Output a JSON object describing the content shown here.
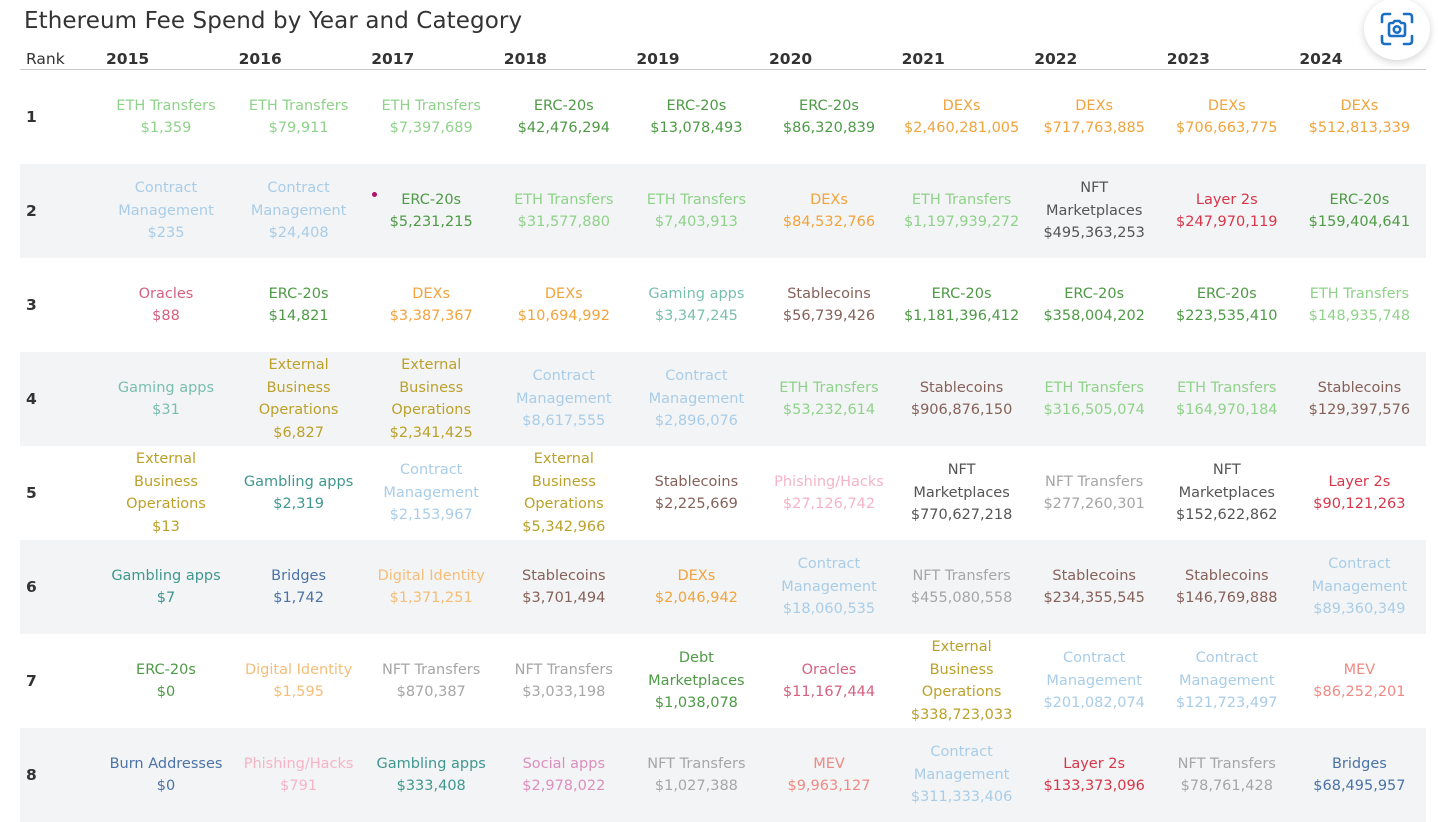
{
  "title": "Ethereum Fee Spend by Year and Category",
  "chart_data": {
    "type": "table",
    "title": "Ethereum Fee Spend by Year and Category",
    "rank_header": "Rank",
    "years": [
      "2015",
      "2016",
      "2017",
      "2018",
      "2019",
      "2020",
      "2021",
      "2022",
      "2023",
      "2024"
    ],
    "category_colors": {
      "ETH Transfers": "#8fd28a",
      "ERC-20s": "#4e9a46",
      "DEXs": "#f2a33c",
      "Contract Management": "#a9cde8",
      "Oracles": "#d5607f",
      "Gaming apps": "#79bfae",
      "Gambling apps": "#3f978f",
      "External Business Operations": "#bba12a",
      "Stablecoins": "#86615a",
      "NFT Marketplaces": "#555555",
      "Layer 2s": "#d9364a",
      "Phishing/Hacks": "#f6b3c6",
      "NFT Transfers": "#a6a6a6",
      "Bridges": "#4b73a7",
      "Digital Identity": "#f5bd78",
      "Debt Marketplaces": "#4e9a46",
      "Burn Addresses": "#4b73a7",
      "Social apps": "#dc8fbd",
      "MEV": "#f08a84"
    },
    "rows": [
      {
        "rank": "1",
        "cells": [
          {
            "category": "ETH Transfers",
            "value": "$1,359"
          },
          {
            "category": "ETH Transfers",
            "value": "$79,911"
          },
          {
            "category": "ETH Transfers",
            "value": "$7,397,689"
          },
          {
            "category": "ERC-20s",
            "value": "$42,476,294"
          },
          {
            "category": "ERC-20s",
            "value": "$13,078,493"
          },
          {
            "category": "ERC-20s",
            "value": "$86,320,839"
          },
          {
            "category": "DEXs",
            "value": "$2,460,281,005"
          },
          {
            "category": "DEXs",
            "value": "$717,763,885"
          },
          {
            "category": "DEXs",
            "value": "$706,663,775"
          },
          {
            "category": "DEXs",
            "value": "$512,813,339"
          }
        ]
      },
      {
        "rank": "2",
        "cells": [
          {
            "category": "Contract Management",
            "value": "$235"
          },
          {
            "category": "Contract Management",
            "value": "$24,408"
          },
          {
            "category": "ERC-20s",
            "value": "$5,231,215"
          },
          {
            "category": "ETH Transfers",
            "value": "$31,577,880"
          },
          {
            "category": "ETH Transfers",
            "value": "$7,403,913"
          },
          {
            "category": "DEXs",
            "value": "$84,532,766"
          },
          {
            "category": "ETH Transfers",
            "value": "$1,197,939,272"
          },
          {
            "category": "NFT Marketplaces",
            "value": "$495,363,253"
          },
          {
            "category": "Layer 2s",
            "value": "$247,970,119"
          },
          {
            "category": "ERC-20s",
            "value": "$159,404,641"
          }
        ]
      },
      {
        "rank": "3",
        "cells": [
          {
            "category": "Oracles",
            "value": "$88"
          },
          {
            "category": "ERC-20s",
            "value": "$14,821"
          },
          {
            "category": "DEXs",
            "value": "$3,387,367"
          },
          {
            "category": "DEXs",
            "value": "$10,694,992"
          },
          {
            "category": "Gaming apps",
            "value": "$3,347,245"
          },
          {
            "category": "Stablecoins",
            "value": "$56,739,426"
          },
          {
            "category": "ERC-20s",
            "value": "$1,181,396,412"
          },
          {
            "category": "ERC-20s",
            "value": "$358,004,202"
          },
          {
            "category": "ERC-20s",
            "value": "$223,535,410"
          },
          {
            "category": "ETH Transfers",
            "value": "$148,935,748"
          }
        ]
      },
      {
        "rank": "4",
        "cells": [
          {
            "category": "Gaming apps",
            "value": "$31"
          },
          {
            "category": "External Business Operations",
            "value": "$6,827"
          },
          {
            "category": "External Business Operations",
            "value": "$2,341,425"
          },
          {
            "category": "Contract Management",
            "value": "$8,617,555"
          },
          {
            "category": "Contract Management",
            "value": "$2,896,076"
          },
          {
            "category": "ETH Transfers",
            "value": "$53,232,614"
          },
          {
            "category": "Stablecoins",
            "value": "$906,876,150"
          },
          {
            "category": "ETH Transfers",
            "value": "$316,505,074"
          },
          {
            "category": "ETH Transfers",
            "value": "$164,970,184"
          },
          {
            "category": "Stablecoins",
            "value": "$129,397,576"
          }
        ]
      },
      {
        "rank": "5",
        "cells": [
          {
            "category": "External Business Operations",
            "value": "$13"
          },
          {
            "category": "Gambling apps",
            "value": "$2,319"
          },
          {
            "category": "Contract Management",
            "value": "$2,153,967"
          },
          {
            "category": "External Business Operations",
            "value": "$5,342,966"
          },
          {
            "category": "Stablecoins",
            "value": "$2,225,669"
          },
          {
            "category": "Phishing/Hacks",
            "value": "$27,126,742"
          },
          {
            "category": "NFT Marketplaces",
            "value": "$770,627,218"
          },
          {
            "category": "NFT Transfers",
            "value": "$277,260,301"
          },
          {
            "category": "NFT Marketplaces",
            "value": "$152,622,862"
          },
          {
            "category": "Layer 2s",
            "value": "$90,121,263"
          }
        ]
      },
      {
        "rank": "6",
        "cells": [
          {
            "category": "Gambling apps",
            "value": "$7"
          },
          {
            "category": "Bridges",
            "value": "$1,742"
          },
          {
            "category": "Digital Identity",
            "value": "$1,371,251"
          },
          {
            "category": "Stablecoins",
            "value": "$3,701,494"
          },
          {
            "category": "DEXs",
            "value": "$2,046,942"
          },
          {
            "category": "Contract Management",
            "value": "$18,060,535"
          },
          {
            "category": "NFT Transfers",
            "value": "$455,080,558"
          },
          {
            "category": "Stablecoins",
            "value": "$234,355,545"
          },
          {
            "category": "Stablecoins",
            "value": "$146,769,888"
          },
          {
            "category": "Contract Management",
            "value": "$89,360,349"
          }
        ]
      },
      {
        "rank": "7",
        "cells": [
          {
            "category": "ERC-20s",
            "value": "$0"
          },
          {
            "category": "Digital Identity",
            "value": "$1,595"
          },
          {
            "category": "NFT Transfers",
            "value": "$870,387"
          },
          {
            "category": "NFT Transfers",
            "value": "$3,033,198"
          },
          {
            "category": "Debt Marketplaces",
            "value": "$1,038,078"
          },
          {
            "category": "Oracles",
            "value": "$11,167,444"
          },
          {
            "category": "External Business Operations",
            "value": "$338,723,033"
          },
          {
            "category": "Contract Management",
            "value": "$201,082,074"
          },
          {
            "category": "Contract Management",
            "value": "$121,723,497"
          },
          {
            "category": "MEV",
            "value": "$86,252,201"
          }
        ]
      },
      {
        "rank": "8",
        "cells": [
          {
            "category": "Burn Addresses",
            "value": "$0"
          },
          {
            "category": "Phishing/Hacks",
            "value": "$791"
          },
          {
            "category": "Gambling apps",
            "value": "$333,408"
          },
          {
            "category": "Social apps",
            "value": "$2,978,022"
          },
          {
            "category": "NFT Transfers",
            "value": "$1,027,388"
          },
          {
            "category": "MEV",
            "value": "$9,963,127"
          },
          {
            "category": "Contract Management",
            "value": "$311,333,406"
          },
          {
            "category": "Layer 2s",
            "value": "$133,373,096"
          },
          {
            "category": "NFT Transfers",
            "value": "$78,761,428"
          },
          {
            "category": "Bridges",
            "value": "$68,495,957"
          }
        ]
      }
    ]
  },
  "toolbar": {
    "camera_icon": "camera-capture-icon",
    "camera_color": "#1a6fc4"
  }
}
